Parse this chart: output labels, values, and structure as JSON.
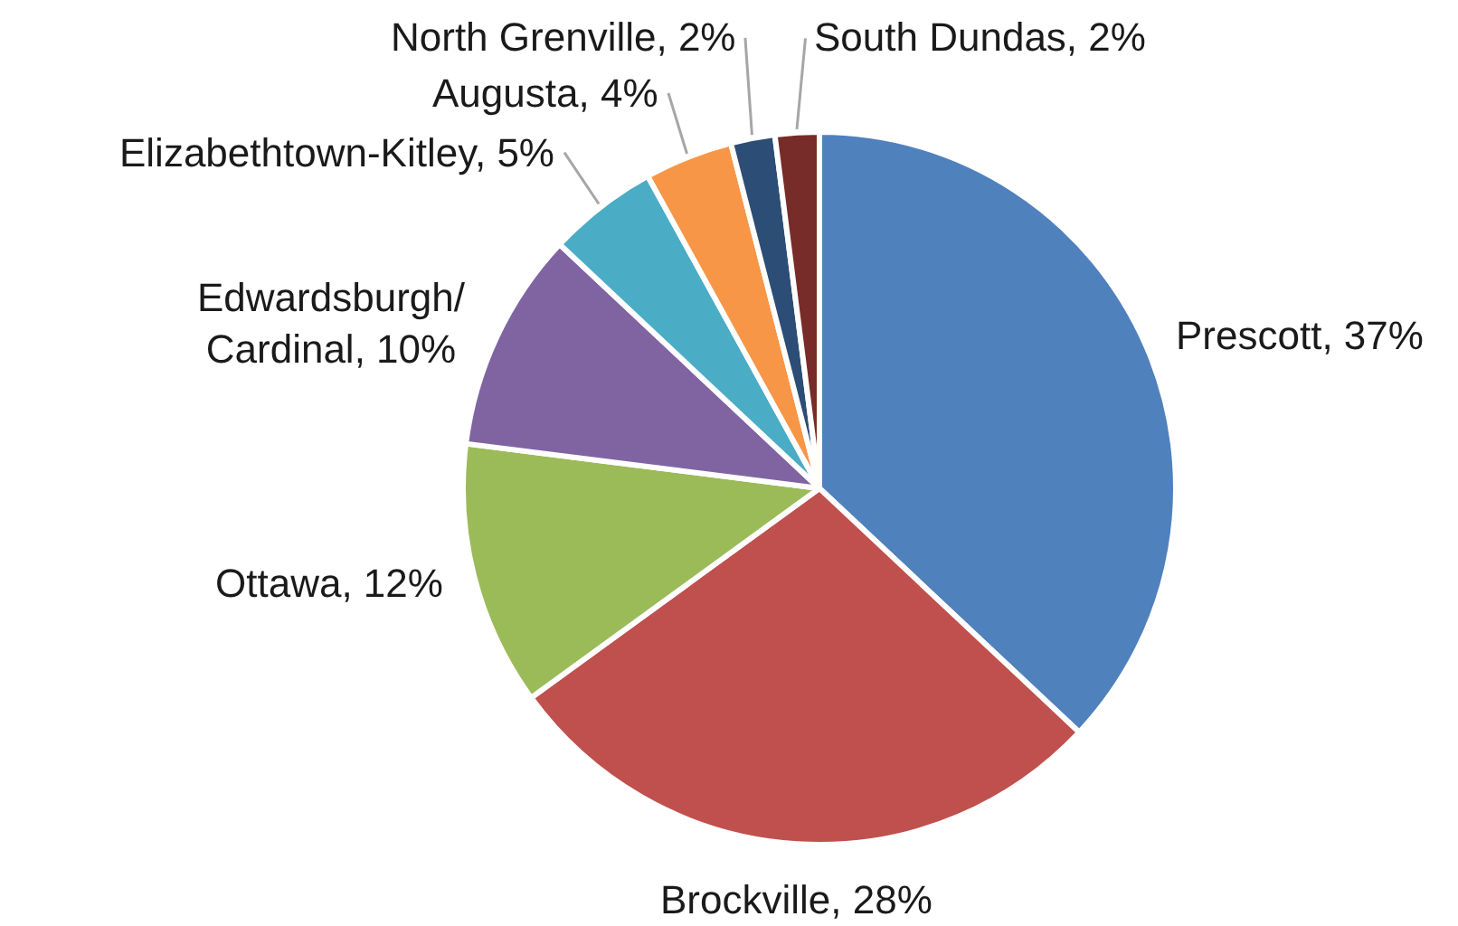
{
  "chart_data": {
    "type": "pie",
    "categories": [
      "Prescott",
      "Brockville",
      "Ottawa",
      "Edwardsburgh/Cardinal",
      "Elizabethtown-Kitley",
      "Augusta",
      "North Grenville",
      "South Dundas"
    ],
    "values": [
      37,
      28,
      12,
      10,
      5,
      4,
      2,
      2
    ],
    "value_labels": [
      "37%",
      "28%",
      "12%",
      "10%",
      "5%",
      "4%",
      "2%",
      "2%"
    ],
    "colors": [
      "#4f81bd",
      "#c0504d",
      "#9bbb59",
      "#8064a2",
      "#4bacc6",
      "#f79646",
      "#2c4d75",
      "#772c2a"
    ]
  }
}
